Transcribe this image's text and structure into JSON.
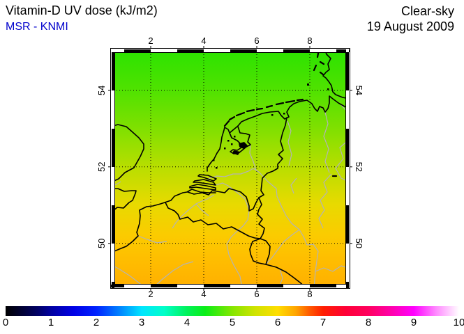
{
  "header": {
    "title": "Vitamin-D UV dose (kJ/m2)",
    "source": "MSR - KNMI",
    "source_color": "#0000cc",
    "condition": "Clear-sky",
    "date": "19 August 2009"
  },
  "map": {
    "x_ticks": [
      2,
      4,
      6,
      8
    ],
    "y_ticks": [
      54,
      52,
      50
    ],
    "lon_range": [
      0.5,
      9.5
    ],
    "lat_range": [
      48.83,
      55.09
    ],
    "field_gradient": [
      {
        "at": 0.0,
        "color": "#2be300"
      },
      {
        "at": 0.17,
        "color": "#4fe200"
      },
      {
        "at": 0.35,
        "color": "#85e000"
      },
      {
        "at": 0.5,
        "color": "#bade00"
      },
      {
        "at": 0.65,
        "color": "#e8da00"
      },
      {
        "at": 0.78,
        "color": "#fbcb00"
      },
      {
        "at": 0.9,
        "color": "#ffbb00"
      },
      {
        "at": 1.0,
        "color": "#ffaf00"
      }
    ]
  },
  "colorbar": {
    "min": 0,
    "max": 10,
    "labels": [
      "0",
      "1",
      "2",
      "3",
      "4",
      "5",
      "6",
      "7",
      "8",
      "9",
      "10"
    ],
    "stops": [
      {
        "value": 0,
        "color": "#000000"
      },
      {
        "value": 0.7,
        "color": "#000064"
      },
      {
        "value": 1,
        "color": "#0000a0"
      },
      {
        "value": 1.5,
        "color": "#0000e6"
      },
      {
        "value": 2,
        "color": "#0022ff"
      },
      {
        "value": 2.5,
        "color": "#0080ff"
      },
      {
        "value": 3,
        "color": "#00e5ff"
      },
      {
        "value": 3.5,
        "color": "#00ffc8"
      },
      {
        "value": 4,
        "color": "#00f25a"
      },
      {
        "value": 4.4,
        "color": "#0aee17"
      },
      {
        "value": 5,
        "color": "#86e600"
      },
      {
        "value": 5.5,
        "color": "#cfe300"
      },
      {
        "value": 6,
        "color": "#ffdd00"
      },
      {
        "value": 6.4,
        "color": "#ffa500"
      },
      {
        "value": 6.7,
        "color": "#ff5a00"
      },
      {
        "value": 7,
        "color": "#ff1e00"
      },
      {
        "value": 7.5,
        "color": "#ff0037"
      },
      {
        "value": 8,
        "color": "#ff005f"
      },
      {
        "value": 8.5,
        "color": "#ff00aa"
      },
      {
        "value": 9,
        "color": "#ff00ff"
      },
      {
        "value": 9.5,
        "color": "#ff8cff"
      },
      {
        "value": 10,
        "color": "#ffffff"
      }
    ]
  }
}
